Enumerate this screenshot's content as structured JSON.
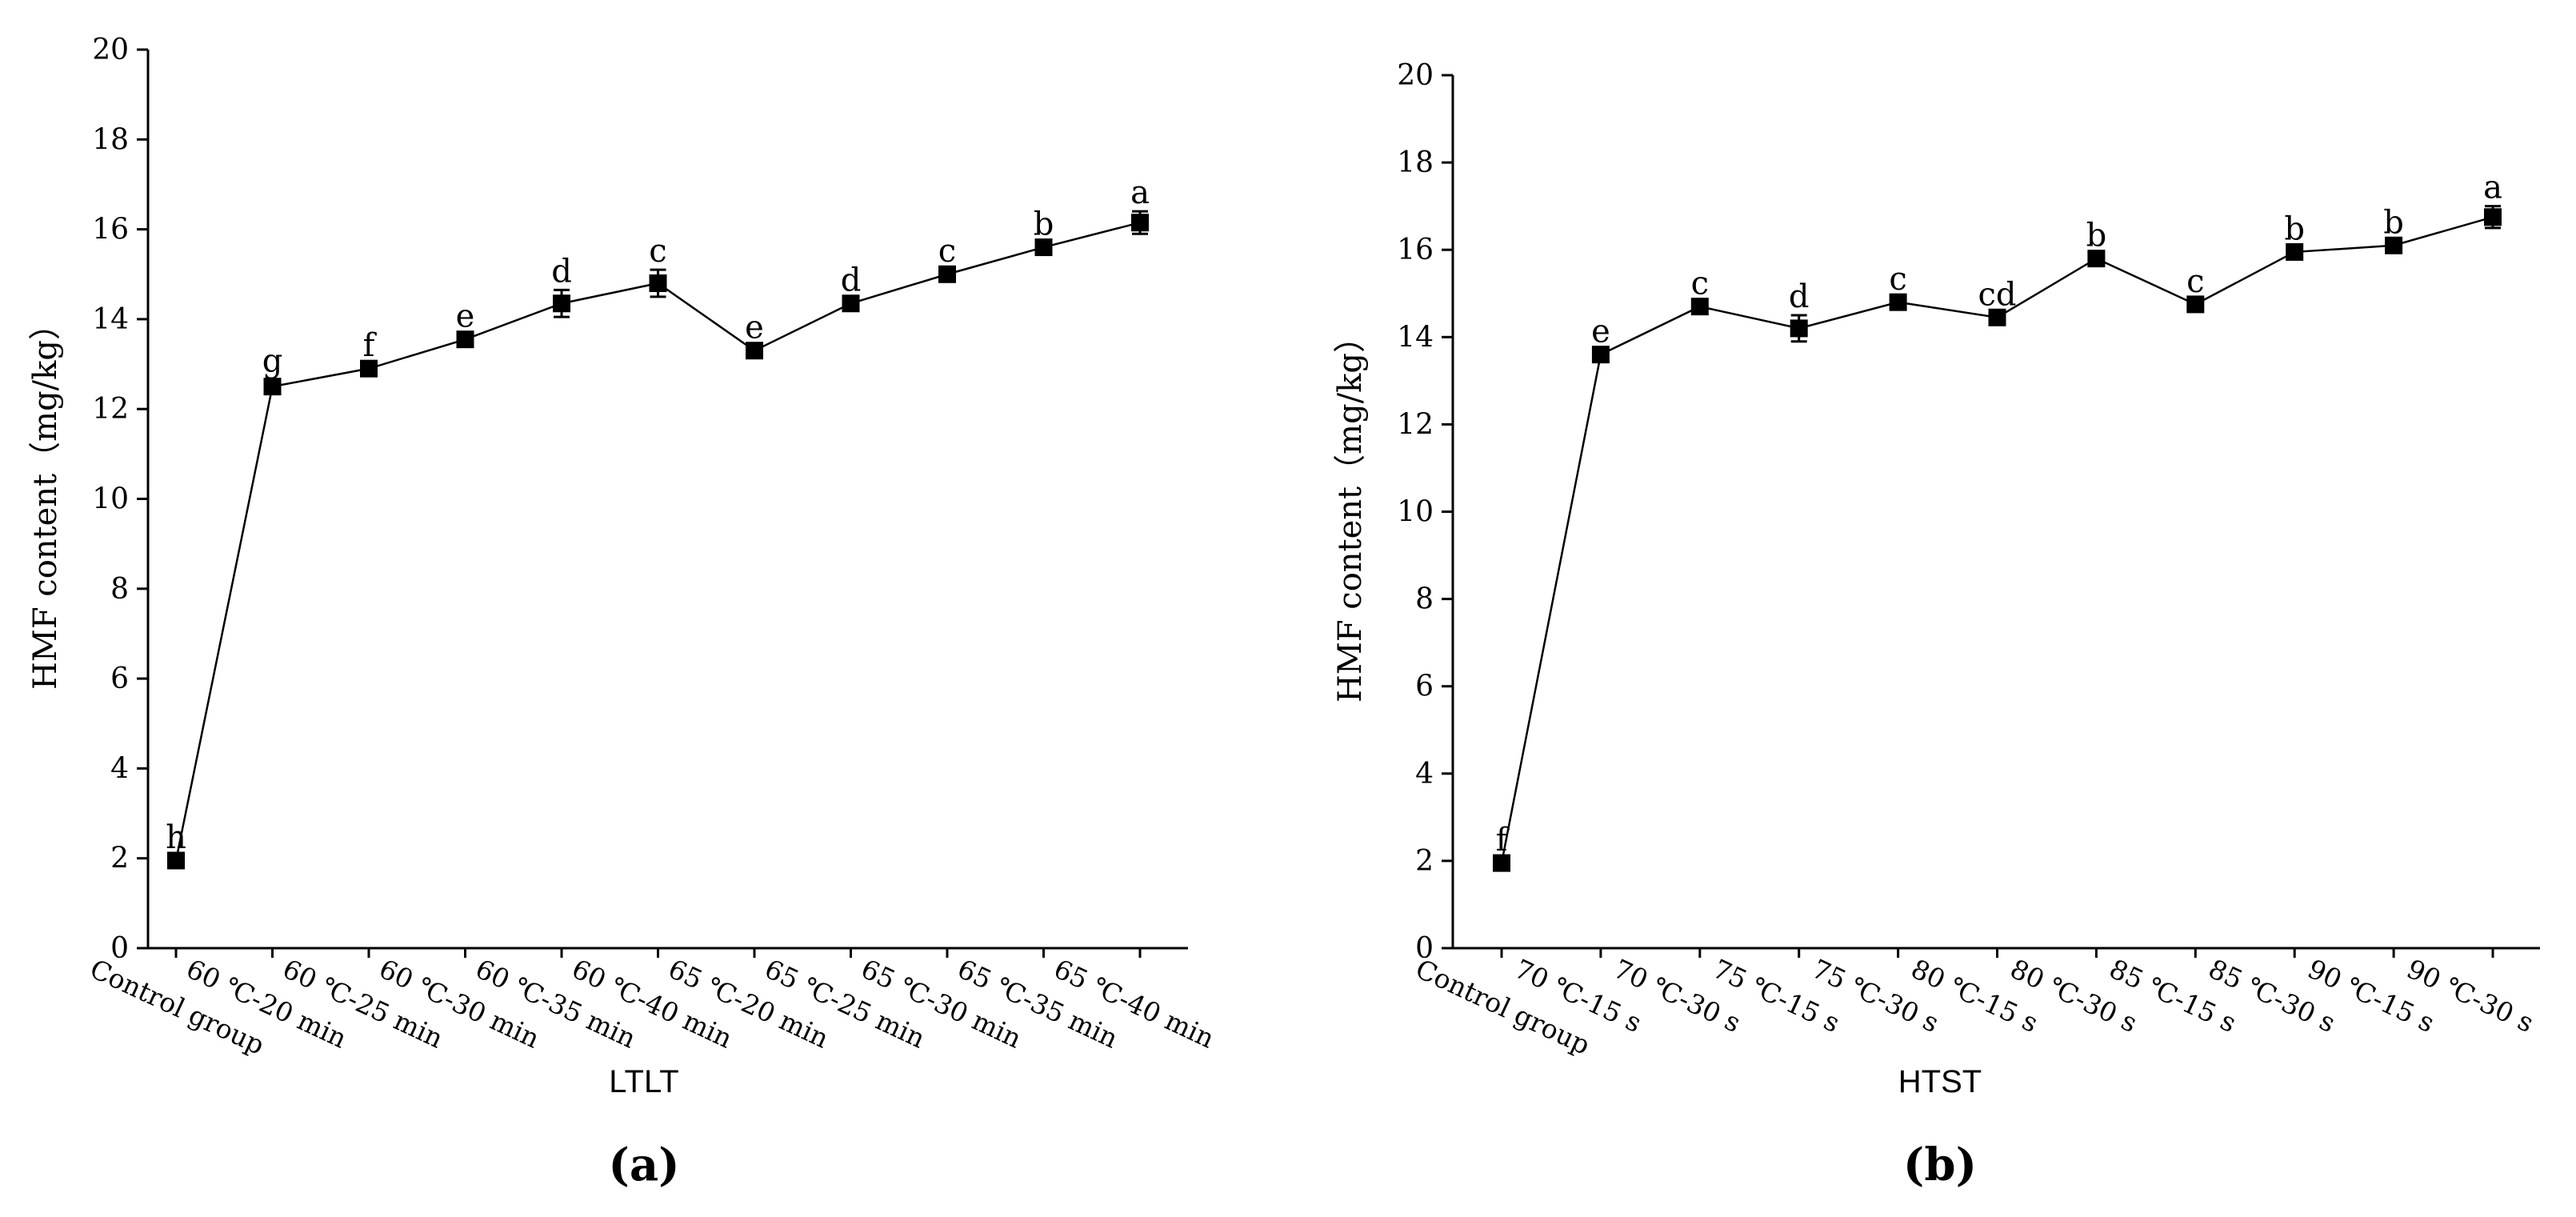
{
  "chart_data": [
    {
      "type": "line",
      "panel_label": "(a)",
      "x_label": "LTLT",
      "y_label": "HMF content（mg/kg）",
      "categories": [
        "Control group",
        "60 ℃-20 min",
        "60 ℃-25 min",
        "60 ℃-30 min",
        "60 ℃-35 min",
        "60 ℃-40 min",
        "65 ℃-20 min",
        "65 ℃-25 min",
        "65 ℃-30 min",
        "65 ℃-35 min",
        "65 ℃-40 min"
      ],
      "series": [
        {
          "color": "#000000",
          "values": [
            1.95,
            12.5,
            12.9,
            13.55,
            14.35,
            14.8,
            13.3,
            14.35,
            15.0,
            15.6,
            16.15
          ],
          "errors": [
            0.1,
            0.15,
            0.1,
            0.1,
            0.3,
            0.3,
            0.1,
            0.1,
            0.1,
            0.1,
            0.25
          ],
          "annotations": [
            "h",
            "g",
            "f",
            "e",
            "d",
            "c",
            "e",
            "d",
            "c",
            "b",
            "a"
          ]
        }
      ],
      "ylim": [
        0,
        20
      ],
      "yticks": [
        0,
        2,
        4,
        6,
        8,
        10,
        12,
        14,
        16,
        18,
        20
      ]
    },
    {
      "type": "line",
      "panel_label": "(b)",
      "x_label": "HTST",
      "y_label": "HMF content（mg/kg）",
      "categories": [
        "Control group",
        "70 ℃-15 s",
        "70 ℃-30 s",
        "75 ℃-15 s",
        "75 ℃-30 s",
        "80 ℃-15 s",
        "80 ℃-30 s",
        "85 ℃-15 s",
        "85 ℃-30 s",
        "90 ℃-15 s",
        "90 ℃-30 s"
      ],
      "series": [
        {
          "color": "#000000",
          "values": [
            1.95,
            13.6,
            14.7,
            14.2,
            14.8,
            14.45,
            15.8,
            14.75,
            15.95,
            16.1,
            16.75
          ],
          "errors": [
            0.1,
            0.1,
            0.1,
            0.3,
            0.1,
            0.1,
            0.1,
            0.1,
            0.1,
            0.1,
            0.25
          ],
          "annotations": [
            "f",
            "e",
            "c",
            "d",
            "c",
            "cd",
            "b",
            "c",
            "b",
            "b",
            "a"
          ]
        }
      ],
      "ylim": [
        0,
        20
      ],
      "yticks": [
        0,
        2,
        4,
        6,
        8,
        10,
        12,
        14,
        16,
        18,
        20
      ]
    }
  ]
}
